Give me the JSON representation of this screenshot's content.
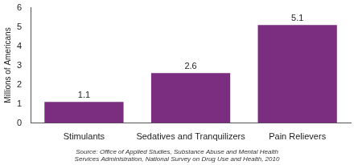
{
  "chart_data": {
    "type": "bar",
    "y_label": "Millions of Americans",
    "categories": [
      "Stimulants",
      "Sedatives and Tranquilizers",
      "Pain Relievers"
    ],
    "values": [
      1.1,
      2.6,
      5.1
    ],
    "color": "#7b2d80",
    "ylim": [
      0,
      6
    ],
    "yticks": [
      0,
      1,
      2,
      3,
      4,
      5,
      6
    ],
    "grid": false,
    "data_labels": true,
    "annotations": [
      "Source: Office of Applied Studies, Substance Abuse and Mental Health",
      "Services Administration, National Survey on Drug Use and Health, 2010"
    ]
  }
}
